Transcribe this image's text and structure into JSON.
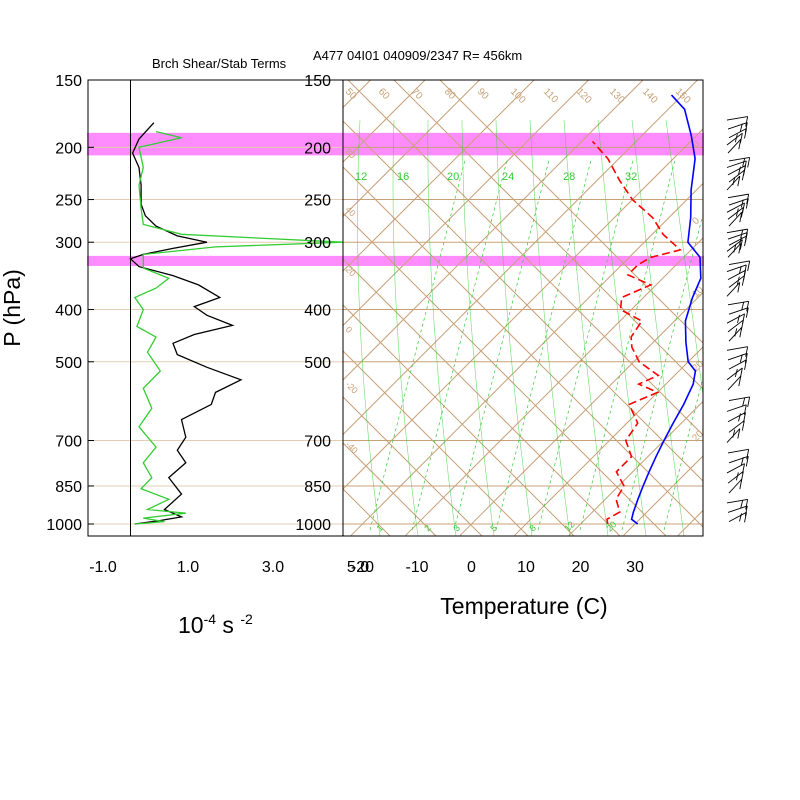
{
  "header": {
    "left_title": "Brch Shear/Stab Terms",
    "right_title": "A477 04I01 040909/2347 R= 456km"
  },
  "colors": {
    "frame": "#000000",
    "grid": "#c8a178",
    "highlight": "#ff66ff",
    "temperature": "#0000ff",
    "dewpoint": "#ff0000",
    "shear": "#000000",
    "stability": "#33cc33",
    "mixing_ratio": "#33cc33"
  },
  "axes": {
    "pressure_label": "P (hPa)",
    "temperature_label": "Temperature (C)",
    "left_unit": "10",
    "left_unit_exp1": "-4",
    "left_unit_mid": " s ",
    "left_unit_exp2": "-2",
    "pressure_ticks": [
      "150",
      "200",
      "250",
      "300",
      "400",
      "500",
      "700",
      "850",
      "1000"
    ],
    "left_x_ticks": [
      "-1.0",
      "1.0",
      "3.0",
      "5.0"
    ],
    "temp_ticks": [
      "-20",
      "-10",
      "0",
      "10",
      "20",
      "30"
    ]
  },
  "chart_data": [
    {
      "type": "line",
      "title": "Brch Shear/Stab Terms",
      "xlim": [
        -1.0,
        5.0
      ],
      "ylim_hPa": [
        1050,
        150
      ],
      "y_scale": "log",
      "series": [
        {
          "key": "shear",
          "color": "#000000",
          "points": [
            [
              0.55,
              180
            ],
            [
              0.2,
              193
            ],
            [
              0.05,
              205
            ],
            [
              0.2,
              218
            ],
            [
              0.25,
              235
            ],
            [
              0.25,
              255
            ],
            [
              0.35,
              268
            ],
            [
              0.6,
              280
            ],
            [
              1.1,
              292
            ],
            [
              1.8,
              300
            ],
            [
              1.0,
              308
            ],
            [
              0.3,
              316
            ],
            [
              0.0,
              322
            ],
            [
              0.2,
              333
            ],
            [
              1.0,
              346
            ],
            [
              1.6,
              360
            ],
            [
              2.1,
              380
            ],
            [
              1.5,
              395
            ],
            [
              1.8,
              410
            ],
            [
              2.4,
              428
            ],
            [
              1.5,
              445
            ],
            [
              1.0,
              462
            ],
            [
              1.1,
              485
            ],
            [
              1.8,
              512
            ],
            [
              2.6,
              540
            ],
            [
              2.0,
              570
            ],
            [
              1.9,
              600
            ],
            [
              1.2,
              640
            ],
            [
              1.3,
              690
            ],
            [
              1.1,
              730
            ],
            [
              1.3,
              770
            ],
            [
              0.9,
              820
            ],
            [
              1.2,
              880
            ],
            [
              0.8,
              940
            ],
            [
              1.2,
              970
            ],
            [
              0.7,
              985
            ],
            [
              0.1,
              1000
            ]
          ]
        },
        {
          "key": "stability",
          "color": "#33cc33",
          "points": [
            [
              0.6,
              187
            ],
            [
              1.2,
              192
            ],
            [
              0.2,
              200
            ],
            [
              0.3,
              218
            ],
            [
              0.2,
              235
            ],
            [
              0.25,
              260
            ],
            [
              0.3,
              278
            ],
            [
              1.2,
              290
            ],
            [
              5.0,
              300
            ],
            [
              2.0,
              306
            ],
            [
              0.3,
              316
            ],
            [
              0.3,
              335
            ],
            [
              0.9,
              350
            ],
            [
              0.6,
              365
            ],
            [
              0.1,
              380
            ],
            [
              0.3,
              400
            ],
            [
              0.15,
              430
            ],
            [
              0.6,
              450
            ],
            [
              0.4,
              480
            ],
            [
              0.7,
              520
            ],
            [
              0.3,
              560
            ],
            [
              0.5,
              610
            ],
            [
              0.2,
              660
            ],
            [
              0.6,
              720
            ],
            [
              0.3,
              770
            ],
            [
              0.5,
              820
            ],
            [
              0.25,
              860
            ],
            [
              0.9,
              900
            ],
            [
              0.4,
              940
            ],
            [
              1.3,
              955
            ],
            [
              0.3,
              975
            ],
            [
              0.8,
              990
            ],
            [
              0.1,
              1000
            ]
          ]
        }
      ]
    },
    {
      "type": "line",
      "title": "A477 04I01 040909/2347 R= 456km",
      "xlabel": "Temperature (C)",
      "ylabel": "P (hPa)",
      "xlim_at_1000hPa": [
        -23,
        42
      ],
      "ylim_hPa": [
        1050,
        150
      ],
      "y_scale": "log",
      "skew": "skew-T",
      "series": [
        {
          "key": "temperature",
          "color": "#0000ff",
          "style": "solid",
          "points": [
            [
              30.5,
              1000
            ],
            [
              28.5,
              980
            ],
            [
              27.5,
              950
            ],
            [
              26,
              900
            ],
            [
              24.5,
              850
            ],
            [
              23,
              800
            ],
            [
              21.5,
              750
            ],
            [
              20,
              700
            ],
            [
              18.5,
              650
            ],
            [
              17,
              600
            ],
            [
              15,
              550
            ],
            [
              13,
              520
            ],
            [
              10,
              500
            ],
            [
              6,
              460
            ],
            [
              2,
              420
            ],
            [
              -1,
              380
            ],
            [
              -3,
              350
            ],
            [
              -7,
              320
            ],
            [
              -12,
              300
            ],
            [
              -16,
              270
            ],
            [
              -21,
              240
            ],
            [
              -26,
              210
            ],
            [
              -31,
              190
            ],
            [
              -37,
              170
            ],
            [
              -42,
              160
            ]
          ]
        },
        {
          "key": "dewpoint",
          "color": "#ff0000",
          "style": "dashed",
          "points": [
            [
              25,
              1000
            ],
            [
              24,
              980
            ],
            [
              25,
              950
            ],
            [
              22,
              900
            ],
            [
              21,
              850
            ],
            [
              17,
              800
            ],
            [
              17,
              750
            ],
            [
              13,
              700
            ],
            [
              12,
              650
            ],
            [
              7,
              600
            ],
            [
              10,
              570
            ],
            [
              5,
              550
            ],
            [
              7,
              530
            ],
            [
              1,
              500
            ],
            [
              -3,
              470
            ],
            [
              -5,
              450
            ],
            [
              -6,
              420
            ],
            [
              -12,
              400
            ],
            [
              -14,
              380
            ],
            [
              -11,
              360
            ],
            [
              -17,
              345
            ],
            [
              -17,
              330
            ],
            [
              -16,
              320
            ],
            [
              -12,
              310
            ],
            [
              -18,
              290
            ],
            [
              -23,
              270
            ],
            [
              -30,
              250
            ],
            [
              -36,
              230
            ],
            [
              -42,
              210
            ],
            [
              -48,
              195
            ]
          ]
        }
      ]
    }
  ],
  "background_labels": {
    "mixing_ratio_upper": [
      "12",
      "16",
      "20",
      "24",
      "28",
      "32"
    ],
    "mixing_ratio_lower": [
      "1",
      "2",
      "3",
      "5",
      "8",
      "12",
      "20"
    ],
    "adiabat_top": [
      "50",
      "60",
      "70",
      "80",
      "90",
      "100",
      "110",
      "120",
      "130",
      "140",
      "150"
    ],
    "adiabat_right": [
      "0",
      "0",
      "10",
      "20",
      "20"
    ],
    "adiabat_left": [
      "80",
      "40",
      "20",
      "0",
      "-20",
      "-40"
    ]
  },
  "highlight_bands": [
    [
      188,
      207
    ],
    [
      318,
      332
    ]
  ],
  "wind_barbs_hPa": [
    178,
    185,
    192,
    198,
    205,
    212,
    218,
    225,
    232,
    240,
    248,
    256,
    264,
    272,
    280,
    288,
    296,
    304,
    312,
    320,
    330,
    340,
    352,
    364,
    378,
    392,
    408,
    424,
    440,
    458,
    476,
    496,
    516,
    540,
    564,
    590,
    618,
    646,
    676,
    706,
    738,
    770,
    804,
    840,
    876,
    914,
    952,
    990
  ]
}
